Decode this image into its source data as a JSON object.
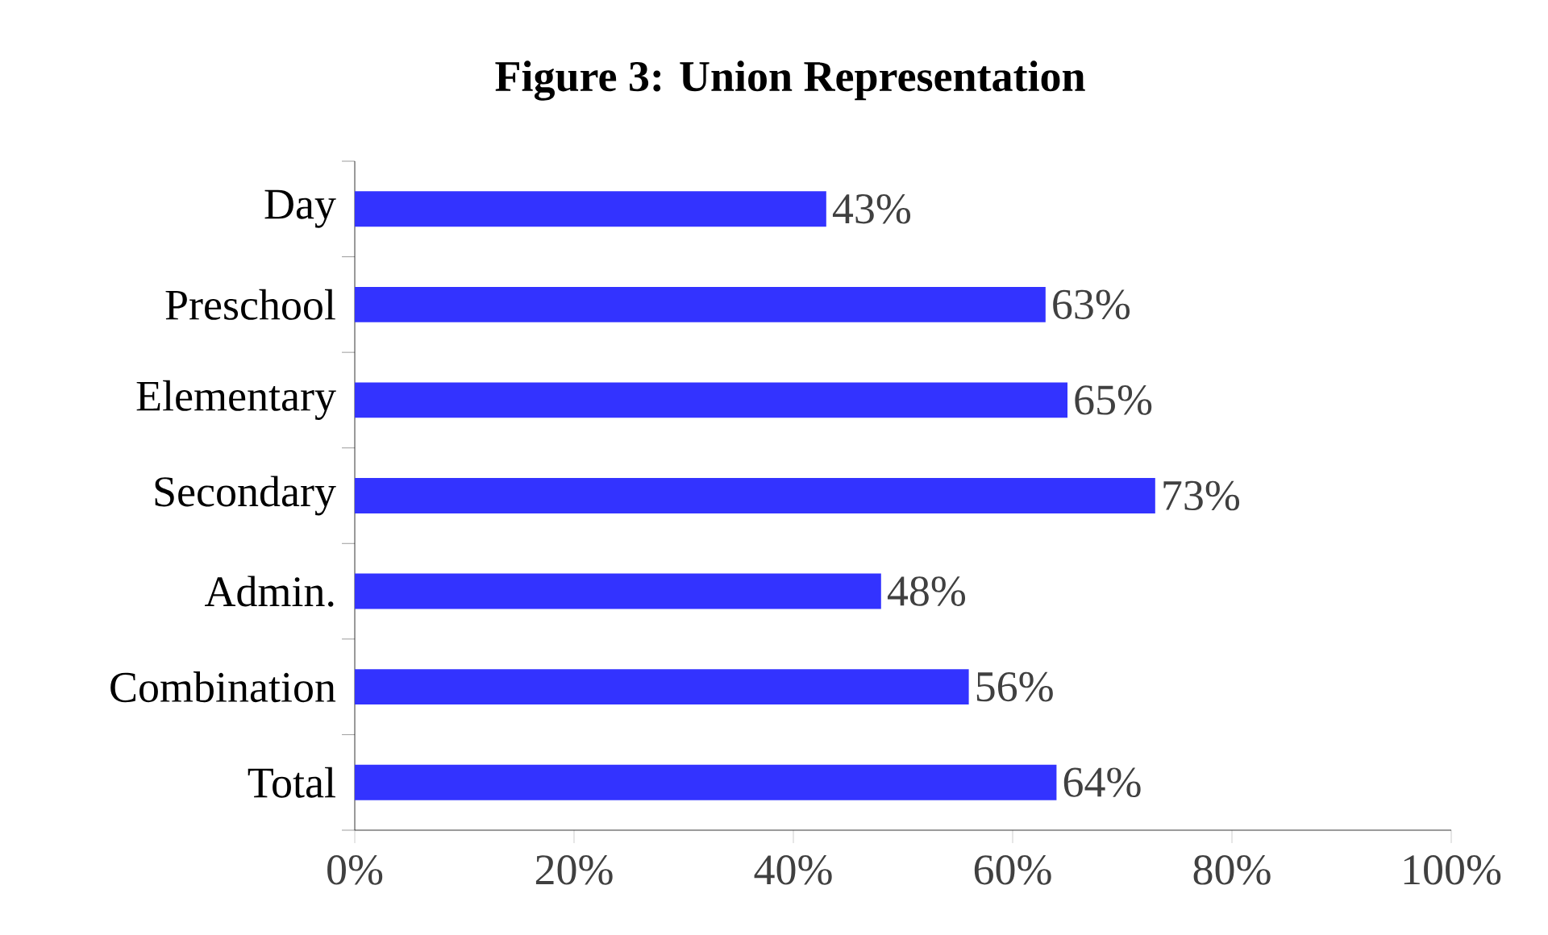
{
  "chart_data": {
    "type": "bar",
    "title": "Figure 3: Union Representation",
    "orientation": "horizontal",
    "categories": [
      "Day",
      "Preschool",
      "Elementary",
      "Secondary",
      "Admin.",
      "Combination",
      "Total"
    ],
    "values": [
      43,
      63,
      65,
      73,
      48,
      56,
      64
    ],
    "value_labels": [
      "43%",
      "63%",
      "65%",
      "73%",
      "48%",
      "56%",
      "64%"
    ],
    "color": "#3333ff",
    "xlim": [
      0,
      100
    ],
    "xticks": [
      {
        "value": 0,
        "label": "0%"
      },
      {
        "value": 20,
        "label": "20%"
      },
      {
        "value": 40,
        "label": "40%"
      },
      {
        "value": 60,
        "label": "60%"
      },
      {
        "value": 80,
        "label": "80%"
      },
      {
        "value": 100,
        "label": "100%"
      }
    ]
  }
}
